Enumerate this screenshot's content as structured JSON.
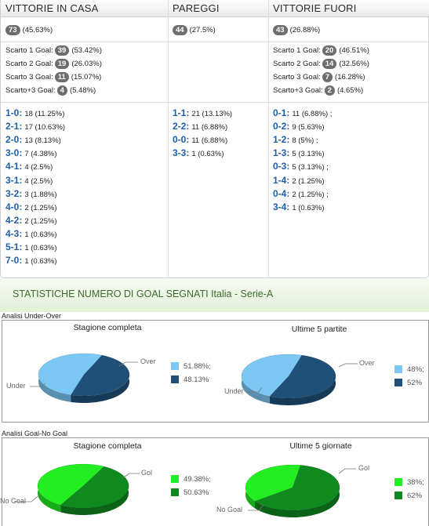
{
  "headers": {
    "home": "VITTORIE IN CASA",
    "draw": "PAREGGI",
    "away": "VITTORIE FUORI"
  },
  "totals": {
    "home": {
      "count": "73",
      "pct": "(45.63%)"
    },
    "draw": {
      "count": "44",
      "pct": "(27.5%)"
    },
    "away": {
      "count": "43",
      "pct": "(26.88%)"
    }
  },
  "margins": {
    "home": [
      {
        "label": "Scarto 1 Goal:",
        "count": "39",
        "pct": "(53.42%)"
      },
      {
        "label": "Scarto 2 Goal:",
        "count": "19",
        "pct": "(26.03%)"
      },
      {
        "label": "Scarto 3 Goal:",
        "count": "11",
        "pct": "(15.07%)"
      },
      {
        "label": "Scarto+3 Goal:",
        "count": "4",
        "pct": "(5.48%)"
      }
    ],
    "away": [
      {
        "label": "Scarto 1 Goal:",
        "count": "20",
        "pct": "(46.51%)"
      },
      {
        "label": "Scarto 2 Goal:",
        "count": "14",
        "pct": "(32.56%)"
      },
      {
        "label": "Scarto 3 Goal:",
        "count": "7",
        "pct": "(16.28%)"
      },
      {
        "label": "Scarto+3 Goal:",
        "count": "2",
        "pct": "(4.65%)"
      }
    ]
  },
  "scores": {
    "home": [
      {
        "score": "1-0:",
        "text": "18 (11.25%)"
      },
      {
        "score": "2-1:",
        "text": "17 (10.63%)"
      },
      {
        "score": "2-0:",
        "text": "13 (8.13%)"
      },
      {
        "score": "3-0:",
        "text": "7 (4.38%)"
      },
      {
        "score": "4-1:",
        "text": "4 (2.5%)"
      },
      {
        "score": "3-1:",
        "text": "4 (2.5%)"
      },
      {
        "score": "3-2:",
        "text": "3 (1.88%)"
      },
      {
        "score": "4-0:",
        "text": "2 (1.25%)"
      },
      {
        "score": "4-2:",
        "text": "2 (1.25%)"
      },
      {
        "score": "4-3:",
        "text": "1 (0.63%)"
      },
      {
        "score": "5-1:",
        "text": "1 (0.63%)"
      },
      {
        "score": "7-0:",
        "text": "1 (0.63%)"
      }
    ],
    "draw": [
      {
        "score": "1-1:",
        "text": "21 (13.13%)"
      },
      {
        "score": "2-2:",
        "text": "11 (6.88%)"
      },
      {
        "score": "0-0:",
        "text": "11 (6.88%)"
      },
      {
        "score": "3-3:",
        "text": "1 (0.63%)"
      }
    ],
    "away": [
      {
        "score": "0-1:",
        "text": "11 (6.88%) ;"
      },
      {
        "score": "0-2:",
        "text": "9 (5.63%)"
      },
      {
        "score": "1-2:",
        "text": "8 (5%) ;"
      },
      {
        "score": "1-3:",
        "text": "5 (3.13%)"
      },
      {
        "score": "0-3:",
        "text": "5 (3.13%) ;"
      },
      {
        "score": "1-4:",
        "text": "2 (1.25%)"
      },
      {
        "score": "0-4:",
        "text": "2 (1.25%) ;"
      },
      {
        "score": "3-4:",
        "text": "1 (0.63%)"
      }
    ]
  },
  "stats": {
    "title_main": "STATISTICHE NUMERO DI GOAL SEGNATI ",
    "title_league": "Italia - Serie-A"
  },
  "under_over": {
    "panel_label": "Analisi Under-Over",
    "charts": [
      {
        "title": "Stagione completa",
        "labels": [
          "Under",
          "Over"
        ],
        "values": [
          51.88,
          48.13
        ],
        "legend": [
          "51.88%;",
          "48.13%"
        ],
        "colors": [
          "#7cc8f5",
          "#1f5079"
        ]
      },
      {
        "title": "Ultime 5 partite",
        "labels": [
          "Under",
          "Over"
        ],
        "values": [
          48,
          52
        ],
        "legend": [
          "48%;",
          "52%"
        ],
        "colors": [
          "#7cc8f5",
          "#1f5079"
        ]
      }
    ]
  },
  "goal_nogoal": {
    "panel_label": "Analisi Goal-No Goal",
    "charts": [
      {
        "title": "Stagione completa",
        "labels": [
          "No Goal",
          "Gol"
        ],
        "values": [
          49.38,
          50.63
        ],
        "legend": [
          "49.38%;",
          "50.63%"
        ],
        "colors": [
          "#22ee22",
          "#0e8a1e"
        ]
      },
      {
        "title": "Ultime 5 giornate",
        "labels": [
          "No Goal",
          "Gol"
        ],
        "values": [
          38,
          62
        ],
        "legend": [
          "38%;",
          "62%"
        ],
        "colors": [
          "#22ee22",
          "#0e8a1e"
        ]
      }
    ]
  }
}
